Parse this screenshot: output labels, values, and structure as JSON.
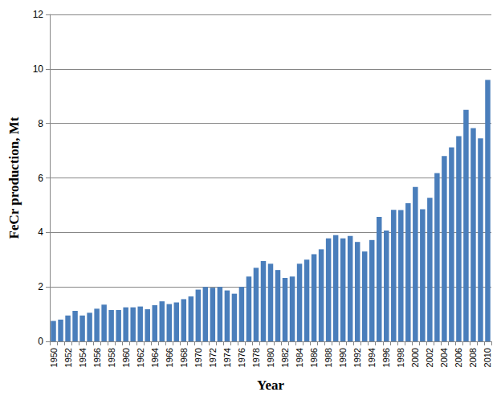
{
  "chart_data": {
    "type": "bar",
    "x_label": "Year",
    "y_label": "FeCr production, Mt",
    "categories": [
      "1950",
      null,
      "1952",
      null,
      "1954",
      null,
      "1956",
      null,
      "1958",
      null,
      "1960",
      null,
      "1962",
      null,
      "1964",
      null,
      "1966",
      null,
      "1968",
      null,
      "1970",
      null,
      "1972",
      null,
      "1974",
      null,
      "1976",
      null,
      "1978",
      null,
      "1980",
      null,
      "1982",
      null,
      "1984",
      null,
      "1986",
      null,
      "1988",
      null,
      "1990",
      null,
      "1992",
      null,
      "1994",
      null,
      "1996",
      null,
      "1998",
      null,
      "2000",
      null,
      "2002",
      null,
      "2004",
      null,
      "2006",
      null,
      "2008",
      null,
      "2010"
    ],
    "values": [
      0.75,
      0.8,
      0.95,
      1.12,
      0.95,
      1.05,
      1.2,
      1.35,
      1.15,
      1.15,
      1.25,
      1.25,
      1.28,
      1.18,
      1.33,
      1.47,
      1.37,
      1.43,
      1.55,
      1.65,
      1.9,
      2.0,
      1.97,
      2.0,
      1.87,
      1.75,
      2.0,
      2.38,
      2.7,
      2.95,
      2.85,
      2.62,
      2.33,
      2.38,
      2.85,
      3.0,
      3.2,
      3.38,
      3.78,
      3.9,
      3.78,
      3.87,
      3.65,
      3.3,
      3.72,
      4.57,
      4.07,
      4.83,
      4.82,
      5.07,
      5.67,
      4.85,
      5.27,
      6.18,
      6.8,
      7.12,
      7.53,
      8.5,
      7.83,
      7.45,
      9.6
    ],
    "color": "#4a7ebb",
    "ylim": [
      0,
      12
    ],
    "yticks": [
      0,
      2,
      4,
      6,
      8,
      10,
      12
    ],
    "grid": true
  }
}
